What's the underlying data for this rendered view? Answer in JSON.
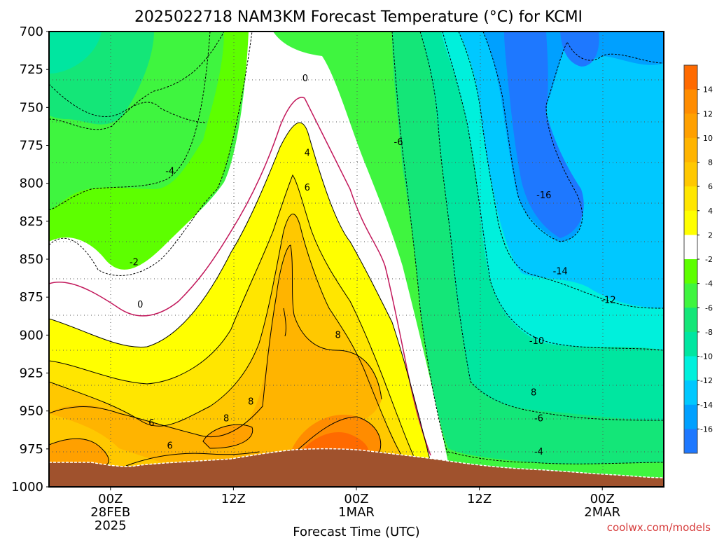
{
  "title": "2025022718 NAM3KM Forecast Temperature (°C) for KCMI",
  "credit": "coolwx.com/models",
  "chart_data": {
    "type": "heatmap",
    "title": "2025022718 NAM3KM Forecast Temperature (°C) for KCMI",
    "xlabel": "Forecast Time (UTC)",
    "ylabel": "",
    "y_scale": "pressure (hPa), inverted",
    "ylim": [
      1000,
      700
    ],
    "y_ticks": [
      700,
      725,
      750,
      775,
      800,
      825,
      850,
      875,
      900,
      925,
      950,
      975,
      1000
    ],
    "y_tick_labels": [
      "700",
      "725",
      "750",
      "775",
      "800",
      "825",
      "850",
      "875",
      "900",
      "925",
      "950",
      "975",
      "1000"
    ],
    "x_ticks": [
      {
        "hour": 0,
        "label": "00Z",
        "sub1": "28FEB",
        "sub2": "2025"
      },
      {
        "hour": 12,
        "label": "12Z",
        "sub1": "",
        "sub2": ""
      },
      {
        "hour": 24,
        "label": "00Z",
        "sub1": "1MAR",
        "sub2": ""
      },
      {
        "hour": 36,
        "label": "12Z",
        "sub1": "",
        "sub2": ""
      },
      {
        "hour": 48,
        "label": "00Z",
        "sub1": "2MAR",
        "sub2": ""
      }
    ],
    "xlim_hours": [
      -6,
      54
    ],
    "colorbar": {
      "labels": [
        "14",
        "12",
        "10",
        "8",
        "6",
        "4",
        "2",
        "-2",
        "-4",
        "-6",
        "-8",
        "-10",
        "-12",
        "-14",
        "-16"
      ],
      "colors": [
        "#ff6a00",
        "#ff8c00",
        "#ffa000",
        "#ffb400",
        "#ffc800",
        "#ffe600",
        "#ffff00",
        "#ffffff",
        "#5dff00",
        "#3ff53f",
        "#14e678",
        "#00e6a0",
        "#00f0dc",
        "#00c8ff",
        "#00a0ff",
        "#1e78ff"
      ]
    },
    "contour_labels": [
      {
        "text": "0",
        "hour": 19,
        "p": 731
      },
      {
        "text": "0",
        "hour": 2.9,
        "p": 880
      },
      {
        "text": "-2",
        "hour": 2.3,
        "p": 852
      },
      {
        "text": "-4",
        "hour": 5.8,
        "p": 792
      },
      {
        "text": "-6",
        "hour": 28.1,
        "p": 773
      },
      {
        "text": "4",
        "hour": 19.2,
        "p": 780
      },
      {
        "text": "6",
        "hour": 19.2,
        "p": 803
      },
      {
        "text": "8",
        "hour": 22.2,
        "p": 900
      },
      {
        "text": "8",
        "hour": 11.3,
        "p": 955
      },
      {
        "text": "8",
        "hour": 13.7,
        "p": 944
      },
      {
        "text": "6",
        "hour": 4,
        "p": 958
      },
      {
        "text": "6",
        "hour": 5.8,
        "p": 973
      },
      {
        "text": "-16",
        "hour": 42.3,
        "p": 808
      },
      {
        "text": "-14",
        "hour": 43.9,
        "p": 858
      },
      {
        "text": "-12",
        "hour": 48.6,
        "p": 877
      },
      {
        "text": "-10",
        "hour": 41.6,
        "p": 904
      },
      {
        "text": "8",
        "hour": 41.3,
        "p": 938
      },
      {
        "text": "-6",
        "hour": 41.8,
        "p": 955
      },
      {
        "text": "-4",
        "hour": 41.8,
        "p": 977
      }
    ],
    "grid": true
  }
}
